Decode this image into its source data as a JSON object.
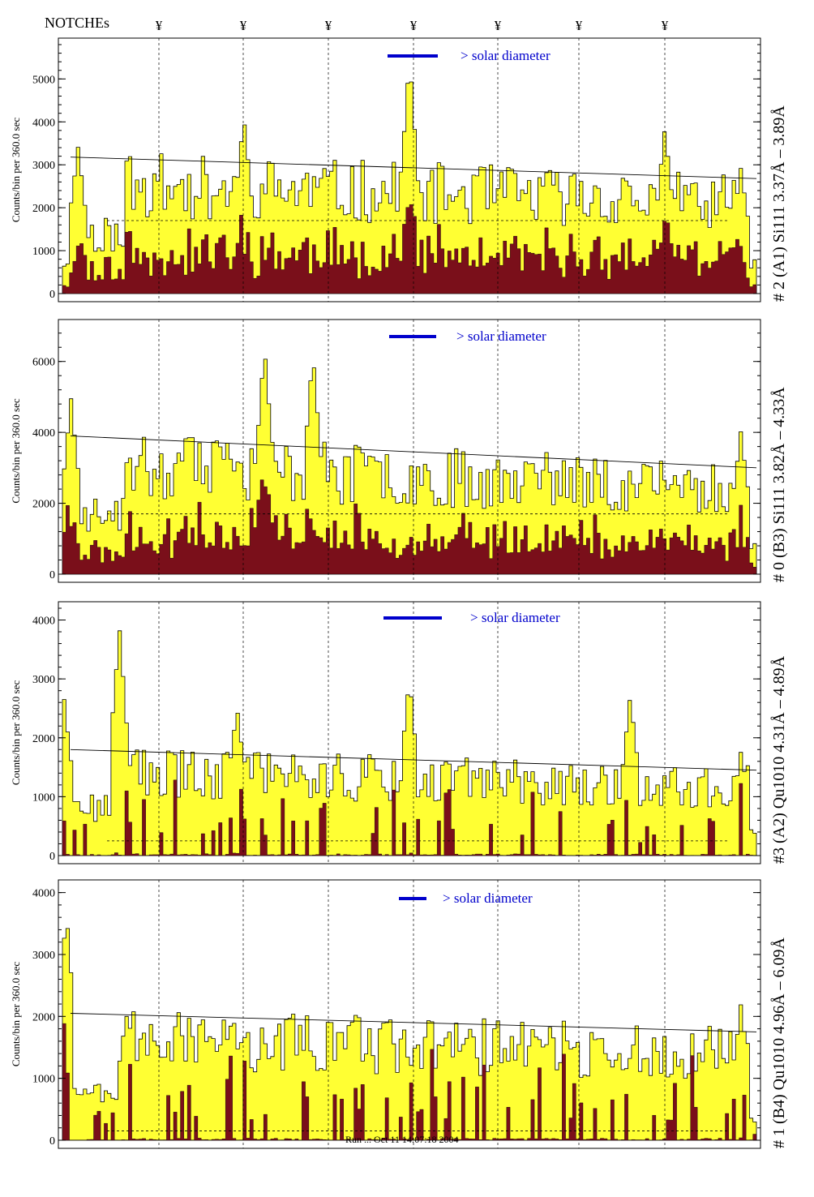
{
  "header": {
    "notches_label": "NOTCHEs",
    "notch_symbol": "¥",
    "notch_count": 7
  },
  "footer": {
    "timestamp": "Run ... Oct 11 14:07:18 2004"
  },
  "colors": {
    "fill": "#ffff33",
    "dark": "#7a0f1a",
    "line": "#000000",
    "solar": "#0000cc"
  },
  "chart_data": [
    {
      "type": "area",
      "panel_label": "# 2 (A1) Si111  3.37Å – 3.89Å",
      "ylabel": "Counts/bin per   360.0 sec",
      "yticks": [
        0,
        1000,
        2000,
        3000,
        4000,
        5000
      ],
      "ylim": [
        0,
        5800
      ],
      "solar_label": "> solar diameter",
      "trend": [
        3180,
        2680
      ],
      "dashed_level": 1700,
      "peaks": [
        [
          0.02,
          3400
        ],
        [
          0.26,
          4100
        ],
        [
          0.5,
          5400
        ],
        [
          0.87,
          3800
        ],
        [
          0.98,
          2900
        ]
      ],
      "seed": 11
    },
    {
      "type": "area",
      "panel_label": "# 0 (B3) Si111  3.82Å – 4.33Å",
      "ylabel": "Counts/bin per   360.0 sec",
      "yticks": [
        0,
        2000,
        4000,
        6000
      ],
      "ylim": [
        0,
        7000
      ],
      "solar_label": "> solar diameter",
      "trend": [
        3900,
        3000
      ],
      "dashed_level": 1700,
      "peaks": [
        [
          0.01,
          4900
        ],
        [
          0.29,
          6400
        ],
        [
          0.36,
          6200
        ],
        [
          0.98,
          4000
        ]
      ],
      "seed": 23
    },
    {
      "type": "area",
      "panel_label": "#3 (A2) Qu1010  4.31Å – 4.89Å",
      "ylabel": "Counts/bin per   360.0 sec",
      "yticks": [
        0,
        1000,
        2000,
        3000,
        4000
      ],
      "ylim": [
        0,
        4200
      ],
      "solar_label": "> solar diameter",
      "trend": [
        1800,
        1450
      ],
      "dashed_level": 250,
      "peaks": [
        [
          0.0,
          2600
        ],
        [
          0.08,
          3850
        ],
        [
          0.25,
          2500
        ],
        [
          0.5,
          2950
        ],
        [
          0.82,
          2700
        ],
        [
          0.98,
          1700
        ]
      ],
      "seed": 37
    },
    {
      "type": "area",
      "panel_label": "# 1 (B4) Qu1010 4.96Å – 6.09Å",
      "ylabel": "Counts/bin per   360.0 sec",
      "yticks": [
        0,
        1000,
        2000,
        3000,
        4000
      ],
      "ylim": [
        0,
        4100
      ],
      "solar_label": "> solar diameter",
      "trend": [
        2050,
        1750
      ],
      "dashed_level": 150,
      "peaks": [
        [
          0.003,
          3700
        ],
        [
          0.09,
          2000
        ],
        [
          0.5,
          1300
        ],
        [
          0.98,
          2150
        ]
      ],
      "seed": 53
    }
  ]
}
